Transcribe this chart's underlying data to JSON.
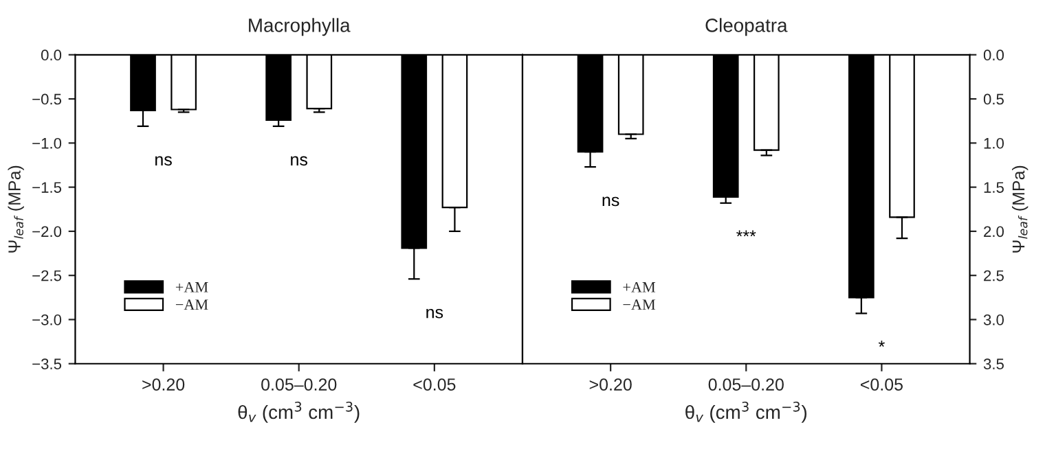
{
  "chart_data": [
    {
      "type": "bar",
      "title": "Macrophylla",
      "xlabel": "θ$_{v}$ (cm$^{3}$ cm$^{−3}$)",
      "ylabel": "Ψ$_{leaf}$ (MPa)",
      "categories": [
        ">0.20",
        "0.05–0.20",
        "<0.05"
      ],
      "series": [
        {
          "name": "+AM",
          "color": "#000000",
          "values": [
            -0.63,
            -0.74,
            -2.19
          ],
          "errors": [
            [
              -0.81,
              -0.63
            ],
            [
              -0.81,
              -0.74
            ],
            [
              -2.54,
              -2.19
            ]
          ]
        },
        {
          "name": "−AM",
          "color": "#ffffff",
          "values": [
            -0.62,
            -0.61,
            -1.73
          ],
          "errors": [
            [
              -0.65,
              -0.62
            ],
            [
              -0.65,
              -0.61
            ],
            [
              -2.0,
              -1.73
            ]
          ]
        }
      ],
      "ylim": [
        -3.5,
        0
      ],
      "yticks": [
        {
          "value": -3.5,
          "label": "−3.5"
        },
        {
          "value": -3.0,
          "label": "−3.0"
        },
        {
          "value": -2.5,
          "label": "−2.5"
        },
        {
          "value": -2.0,
          "label": "−2.0"
        },
        {
          "value": -1.5,
          "label": "−1.5"
        },
        {
          "value": -1.0,
          "label": "−1.0"
        },
        {
          "value": -0.5,
          "label": "−0.5"
        },
        {
          "value": 0,
          "label": "0.0"
        }
      ],
      "annotations": [
        "ns",
        "ns",
        "ns"
      ],
      "legend": "bottom left",
      "grid": false
    },
    {
      "type": "bar",
      "title": "Cleopatra",
      "xlabel": "θ$_{v}$ (cm$^{3}$ cm$^{−3}$)",
      "y2label": "Ψ$_{leaf}$ (MPa)",
      "categories": [
        ">0.20",
        "0.05–0.20",
        "<0.05"
      ],
      "series": [
        {
          "name": "+AM",
          "color": "#000000",
          "axis": "y2",
          "values": [
            -1.1,
            -1.61,
            -2.75
          ],
          "errors": [
            [
              -1.27,
              -1.1
            ],
            [
              -1.68,
              -1.61
            ],
            [
              -2.93,
              -2.75
            ]
          ]
        },
        {
          "name": "−AM",
          "color": "#ffffff",
          "axis": "y2",
          "values": [
            -0.9,
            -1.08,
            -1.84
          ],
          "errors": [
            [
              -0.95,
              -0.9
            ],
            [
              -1.14,
              -1.08
            ],
            [
              -2.08,
              -1.84
            ]
          ]
        }
      ],
      "y2lim": [
        -3.5,
        0
      ],
      "y2ticks": [
        {
          "value": -3.5,
          "label": "3.5"
        },
        {
          "value": -3.0,
          "label": "3.0"
        },
        {
          "value": -2.5,
          "label": "2.5"
        },
        {
          "value": -2.0,
          "label": "2.0"
        },
        {
          "value": -1.5,
          "label": "1.5"
        },
        {
          "value": -1.0,
          "label": "1.0"
        },
        {
          "value": -0.5,
          "label": "0.5"
        },
        {
          "value": 0,
          "label": "0.0"
        }
      ],
      "annotations": [
        "ns",
        "***",
        "*"
      ],
      "legend": "bottom left",
      "grid": false
    }
  ]
}
